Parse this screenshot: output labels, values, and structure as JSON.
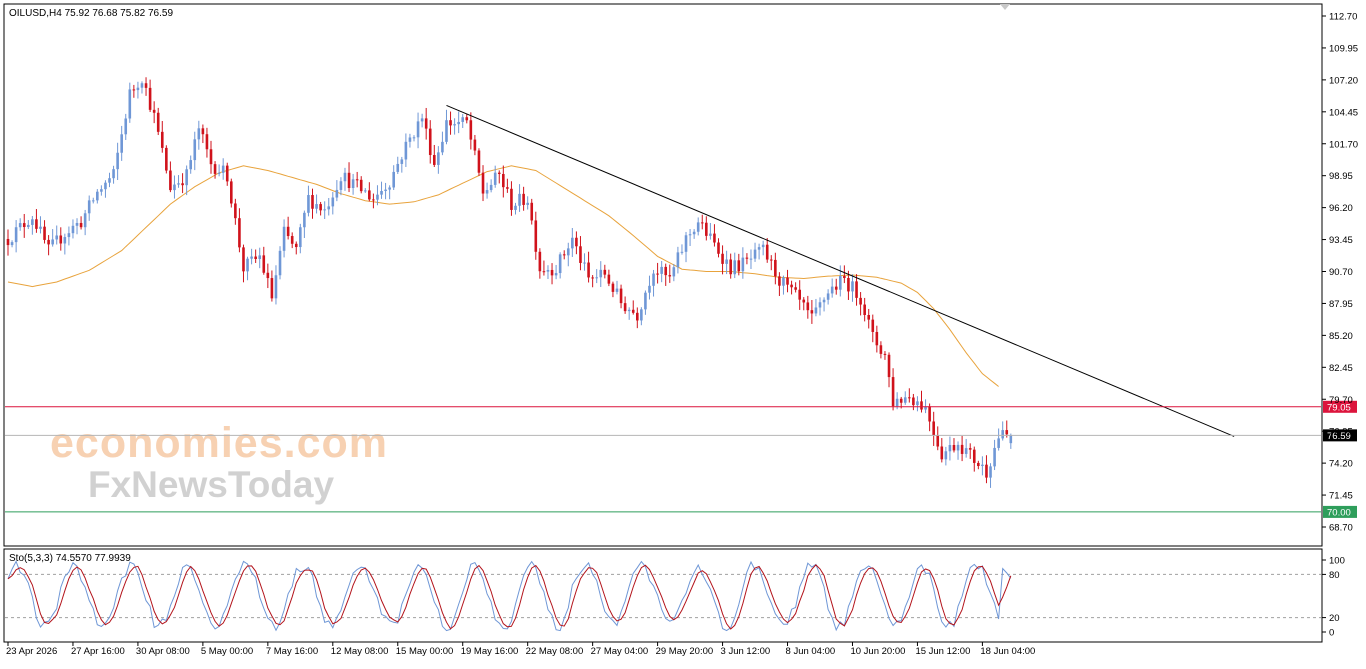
{
  "chart_data": {
    "type": "candlestick",
    "symbol_header": "OILUSD,H4  75.92 76.68 75.82 76.59",
    "y_ticks": [
      "112.70",
      "109.95",
      "107.20",
      "104.45",
      "101.70",
      "98.95",
      "96.20",
      "93.45",
      "90.70",
      "87.95",
      "85.20",
      "82.45",
      "79.70",
      "76.95",
      "74.20",
      "71.45",
      "68.70"
    ],
    "ylim": [
      68.7,
      112.7
    ],
    "x_ticks": [
      "23 Apr 2026",
      "27 Apr 16:00",
      "30 Apr 08:00",
      "5 May 00:00",
      "7 May 16:00",
      "12 May 08:00",
      "15 May 00:00",
      "19 May 16:00",
      "22 May 08:00",
      "27 May 04:00",
      "29 May 20:00",
      "3 Jun 12:00",
      "8 Jun 04:00",
      "10 Jun 20:00",
      "15 Jun 12:00",
      "18 Jun 04:00"
    ],
    "current_price": {
      "label": "76.59",
      "value": 76.59
    },
    "levels": [
      {
        "label": "79.05",
        "value": 79.05,
        "color": "#dc143c"
      },
      {
        "label": "70.00",
        "value": 70.0,
        "color": "#2e9e5b"
      }
    ],
    "trendline": {
      "start": {
        "bar": 108,
        "value": 105.0
      },
      "end": {
        "bar": 302,
        "value": 76.5
      }
    },
    "moving_average": {
      "color": "#e8a33c",
      "anchors": [
        [
          0,
          89.8
        ],
        [
          6,
          89.4
        ],
        [
          12,
          89.8
        ],
        [
          20,
          90.8
        ],
        [
          28,
          92.5
        ],
        [
          34,
          94.5
        ],
        [
          40,
          96.5
        ],
        [
          46,
          98.0
        ],
        [
          52,
          99.2
        ],
        [
          58,
          99.8
        ],
        [
          64,
          99.4
        ],
        [
          70,
          98.8
        ],
        [
          76,
          98.2
        ],
        [
          82,
          97.4
        ],
        [
          88,
          96.8
        ],
        [
          94,
          96.5
        ],
        [
          100,
          96.7
        ],
        [
          106,
          97.3
        ],
        [
          112,
          98.3
        ],
        [
          118,
          99.3
        ],
        [
          124,
          99.8
        ],
        [
          130,
          99.4
        ],
        [
          136,
          98.1
        ],
        [
          142,
          96.8
        ],
        [
          148,
          95.5
        ],
        [
          154,
          93.8
        ],
        [
          160,
          92.0
        ],
        [
          166,
          90.9
        ],
        [
          172,
          90.7
        ],
        [
          178,
          90.7
        ],
        [
          184,
          90.5
        ],
        [
          190,
          90.2
        ],
        [
          196,
          90.1
        ],
        [
          202,
          90.3
        ],
        [
          208,
          90.4
        ],
        [
          214,
          90.2
        ],
        [
          220,
          89.7
        ],
        [
          224,
          88.9
        ],
        [
          228,
          87.5
        ],
        [
          232,
          85.7
        ],
        [
          236,
          83.7
        ],
        [
          240,
          81.9
        ],
        [
          244,
          80.8
        ]
      ]
    },
    "price_path": [
      [
        0,
        93.5
      ],
      [
        6,
        95.5
      ],
      [
        10,
        92.5
      ],
      [
        14,
        94.0
      ],
      [
        18,
        95.0
      ],
      [
        22,
        97.5
      ],
      [
        26,
        99.0
      ],
      [
        30,
        106.0
      ],
      [
        33,
        107.5
      ],
      [
        36,
        104.0
      ],
      [
        40,
        98.0
      ],
      [
        44,
        99.0
      ],
      [
        47,
        103.0
      ],
      [
        50,
        100.0
      ],
      [
        54,
        99.0
      ],
      [
        58,
        91.0
      ],
      [
        62,
        92.0
      ],
      [
        65,
        88.5
      ],
      [
        68,
        94.0
      ],
      [
        71,
        92.5
      ],
      [
        74,
        97.0
      ],
      [
        78,
        96.0
      ],
      [
        82,
        99.0
      ],
      [
        86,
        98.0
      ],
      [
        90,
        97.0
      ],
      [
        94,
        98.5
      ],
      [
        98,
        101.5
      ],
      [
        102,
        104.0
      ],
      [
        105,
        100.0
      ],
      [
        108,
        103.5
      ],
      [
        113,
        103.5
      ],
      [
        117,
        97.5
      ],
      [
        121,
        99.0
      ],
      [
        124,
        96.5
      ],
      [
        128,
        97.0
      ],
      [
        131,
        91.0
      ],
      [
        135,
        91.0
      ],
      [
        139,
        93.5
      ],
      [
        143,
        90.0
      ],
      [
        147,
        90.5
      ],
      [
        151,
        88.0
      ],
      [
        155,
        87.0
      ],
      [
        159,
        91.0
      ],
      [
        163,
        90.0
      ],
      [
        167,
        93.5
      ],
      [
        170,
        95.0
      ],
      [
        174,
        93.0
      ],
      [
        178,
        91.0
      ],
      [
        182,
        91.5
      ],
      [
        186,
        92.5
      ],
      [
        190,
        90.0
      ],
      [
        194,
        88.5
      ],
      [
        198,
        86.5
      ],
      [
        202,
        89.0
      ],
      [
        206,
        90.0
      ],
      [
        210,
        88.5
      ],
      [
        213,
        85.0
      ],
      [
        216,
        83.5
      ],
      [
        218,
        79.5
      ],
      [
        222,
        80.0
      ],
      [
        226,
        79.0
      ],
      [
        230,
        75.0
      ],
      [
        234,
        76.0
      ],
      [
        238,
        74.5
      ],
      [
        241,
        73.5
      ],
      [
        244,
        76.5
      ],
      [
        247,
        76.6
      ]
    ],
    "stochastic": {
      "label": "Sto(5,3,3) 74.5570 77.9939",
      "main_value": 74.557,
      "signal_value": 77.9939,
      "y_ticks": [
        "100",
        "80",
        "20",
        "0"
      ],
      "levels": [
        80,
        20
      ],
      "main_color": "#6f97d6",
      "signal_color": "#b3141c"
    },
    "colors": {
      "bull": "#6f97d6",
      "bear": "#d0121b",
      "trendline": "#000000"
    }
  },
  "watermark": {
    "line1": "economies.com",
    "line2": "FxNewsToday"
  }
}
